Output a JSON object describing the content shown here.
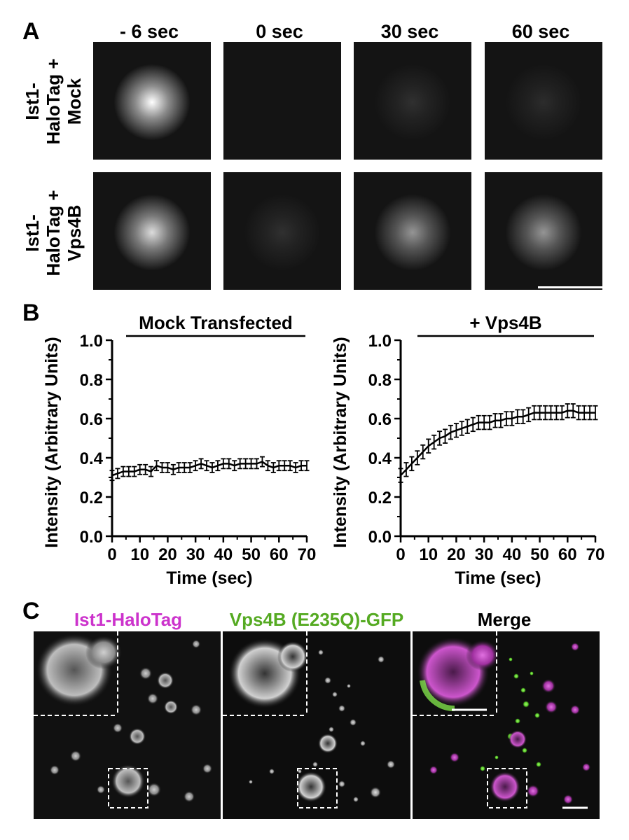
{
  "panel_a": {
    "label": "A",
    "columns": [
      "- 6 sec",
      "0 sec",
      "30 sec",
      "60 sec"
    ],
    "rows": [
      {
        "label_lines": [
          "Ist1-",
          "HaloTag +",
          "Mock"
        ],
        "brightness": [
          1.0,
          0.0,
          0.12,
          0.1
        ]
      },
      {
        "label_lines": [
          "Ist1-",
          "HaloTag +",
          "Vps4B"
        ],
        "brightness": [
          0.85,
          0.12,
          0.55,
          0.55
        ]
      }
    ]
  },
  "panel_b": {
    "label": "B"
  },
  "chart_data": [
    {
      "type": "line",
      "title": "Mock Transfected",
      "xlabel": "Time (sec)",
      "ylabel": "Intensity (Arbitrary Units)",
      "xlim": [
        0,
        70
      ],
      "ylim": [
        0,
        1.0
      ],
      "xticks": [
        "0",
        "10",
        "20",
        "30",
        "40",
        "50",
        "60",
        "70"
      ],
      "yticks": [
        "0.0",
        "0.2",
        "0.4",
        "0.6",
        "0.8",
        "1.0"
      ],
      "x": [
        0,
        2,
        4,
        6,
        8,
        10,
        12,
        14,
        16,
        18,
        20,
        22,
        24,
        26,
        28,
        30,
        32,
        34,
        36,
        38,
        40,
        42,
        44,
        46,
        48,
        50,
        52,
        54,
        56,
        58,
        60,
        62,
        64,
        66,
        68,
        70
      ],
      "series": [
        {
          "values": [
            0.31,
            0.32,
            0.33,
            0.33,
            0.33,
            0.34,
            0.34,
            0.33,
            0.36,
            0.35,
            0.35,
            0.34,
            0.35,
            0.35,
            0.35,
            0.36,
            0.37,
            0.36,
            0.35,
            0.36,
            0.37,
            0.37,
            0.36,
            0.37,
            0.37,
            0.37,
            0.37,
            0.38,
            0.36,
            0.35,
            0.36,
            0.36,
            0.36,
            0.35,
            0.36,
            0.36
          ],
          "error": 0.025
        }
      ]
    },
    {
      "type": "line",
      "title": "+ Vps4B",
      "xlabel": "Time (sec)",
      "ylabel": "Intensity (Arbitrary Units)",
      "xlim": [
        0,
        70
      ],
      "ylim": [
        0,
        1.0
      ],
      "xticks": [
        "0",
        "10",
        "20",
        "30",
        "40",
        "50",
        "60",
        "70"
      ],
      "yticks": [
        "0.0",
        "0.2",
        "0.4",
        "0.6",
        "0.8",
        "1.0"
      ],
      "x": [
        0,
        2,
        4,
        6,
        8,
        10,
        12,
        14,
        16,
        18,
        20,
        22,
        24,
        26,
        28,
        30,
        32,
        34,
        36,
        38,
        40,
        42,
        44,
        46,
        48,
        50,
        52,
        54,
        56,
        58,
        60,
        62,
        64,
        66,
        68,
        70
      ],
      "series": [
        {
          "values": [
            0.31,
            0.34,
            0.37,
            0.4,
            0.43,
            0.46,
            0.48,
            0.5,
            0.51,
            0.53,
            0.54,
            0.55,
            0.56,
            0.57,
            0.58,
            0.58,
            0.58,
            0.59,
            0.59,
            0.6,
            0.6,
            0.61,
            0.61,
            0.62,
            0.63,
            0.63,
            0.63,
            0.63,
            0.63,
            0.63,
            0.64,
            0.64,
            0.63,
            0.63,
            0.63,
            0.63
          ],
          "error": 0.035
        }
      ]
    }
  ],
  "panel_c": {
    "label": "C",
    "titles": [
      {
        "text": "Ist1-HaloTag",
        "color": "#cc33cc"
      },
      {
        "text": "Vps4B (E235Q)-GFP",
        "color": "#55aa22"
      },
      {
        "text": "Merge",
        "color": "#000000"
      }
    ]
  },
  "colors": {
    "magenta": "#cc33cc",
    "green": "#55aa22"
  }
}
